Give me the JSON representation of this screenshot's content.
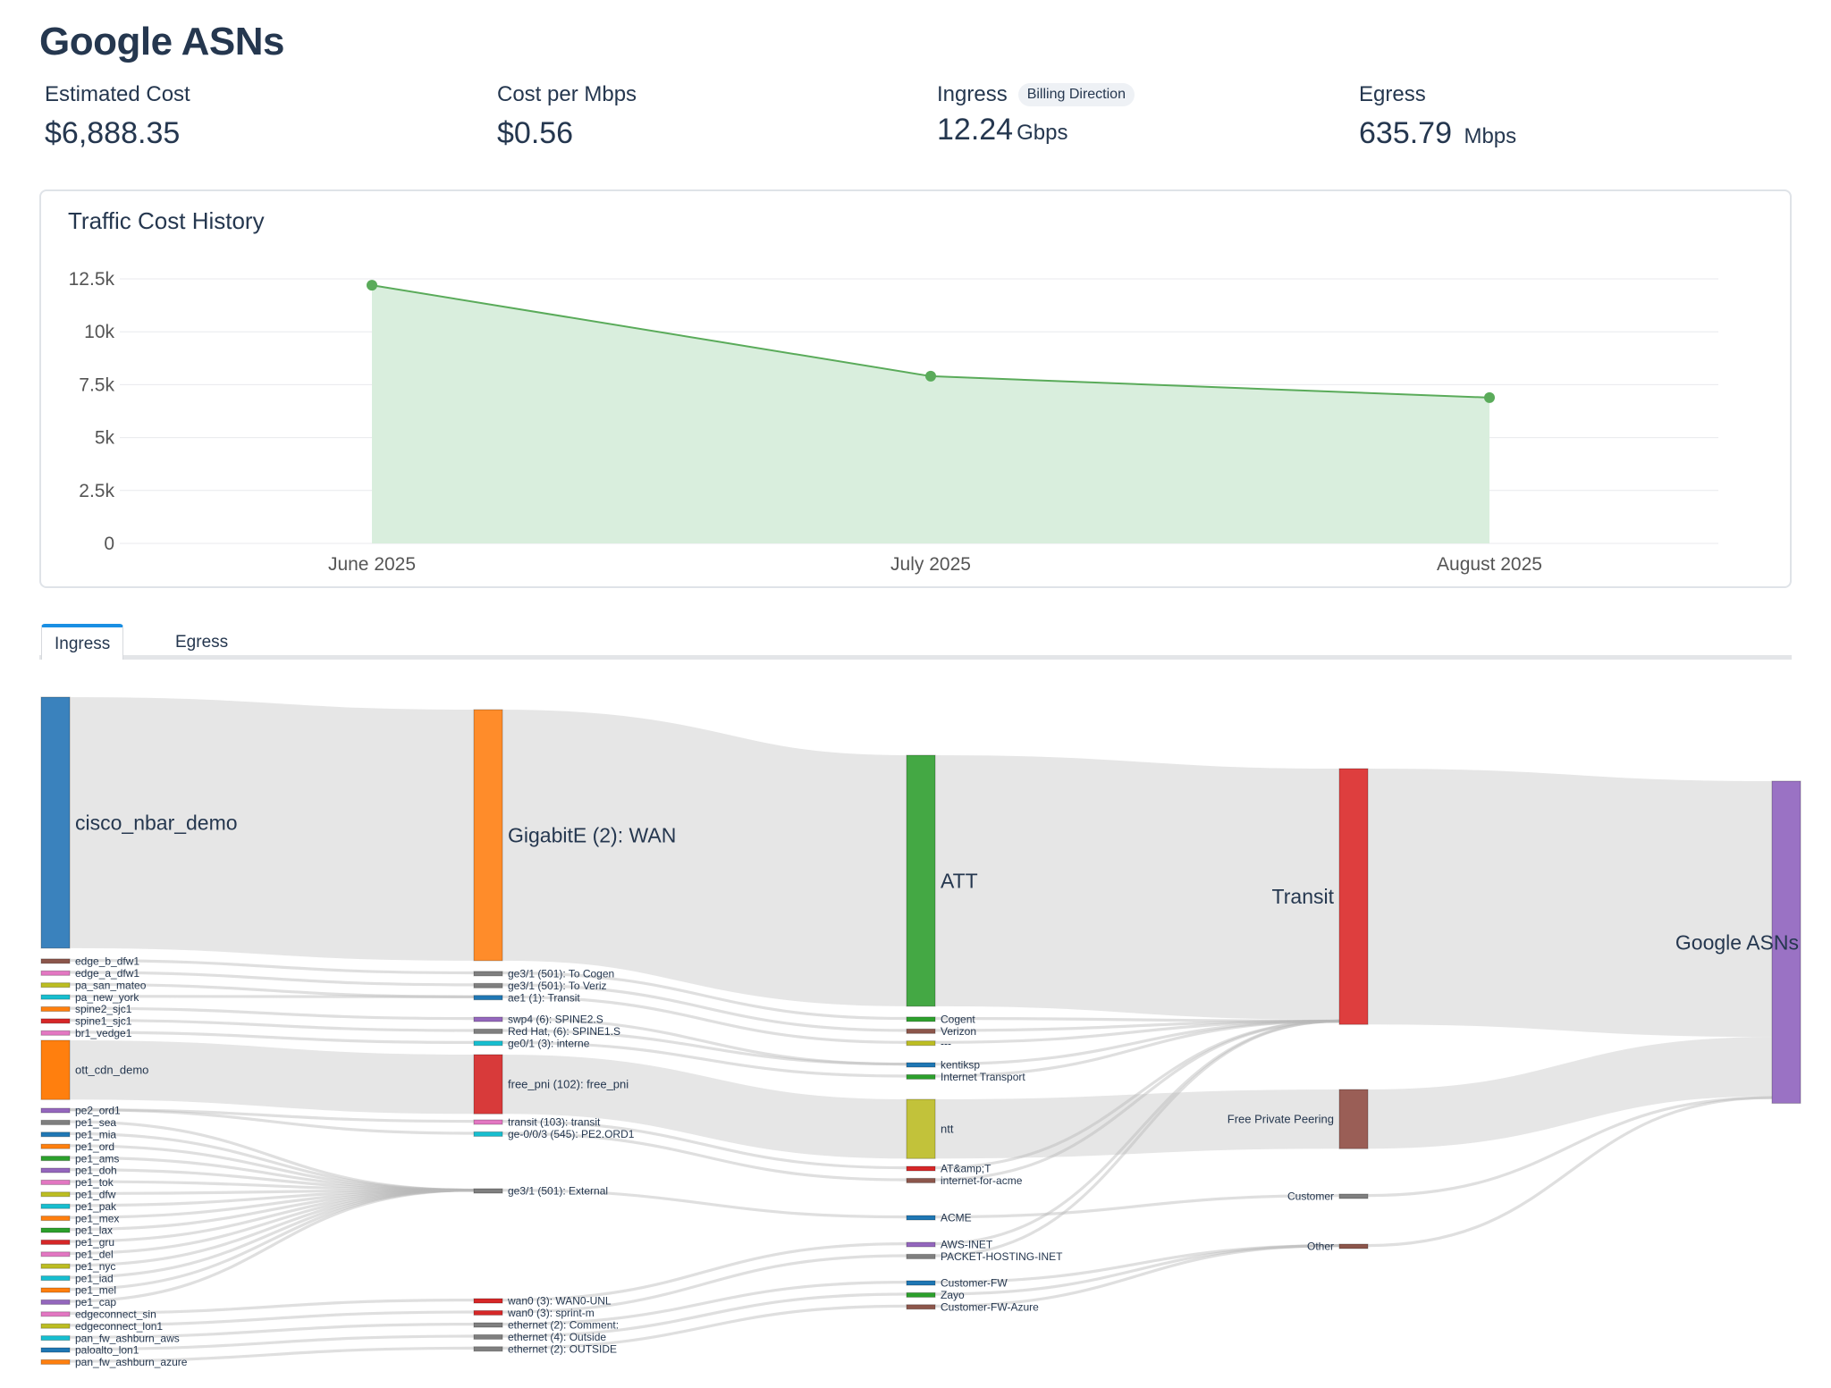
{
  "page": {
    "title": "Google ASNs"
  },
  "metrics": {
    "estimated_cost": {
      "label": "Estimated Cost",
      "value": "$6,888.35"
    },
    "cost_per_mbps": {
      "label": "Cost per Mbps",
      "value": "$0.56"
    },
    "ingress": {
      "label": "Ingress",
      "badge": "Billing Direction",
      "value": "12.24",
      "unit": "Gbps"
    },
    "egress": {
      "label": "Egress",
      "value": "635.79",
      "unit": "Mbps"
    }
  },
  "chart_data": {
    "type": "area",
    "title": "Traffic Cost History",
    "categories": [
      "June 2025",
      "July 2025",
      "August 2025"
    ],
    "values": [
      12200,
      7900,
      6888.35
    ],
    "ylim": [
      0,
      12500
    ],
    "yticks": [
      "0",
      "2.5k",
      "5k",
      "7.5k",
      "10k",
      "12.5k"
    ],
    "grid": true,
    "color": "#5aab5a",
    "fill": "#d9eedd"
  },
  "tabs": [
    {
      "label": "Ingress",
      "active": true
    },
    {
      "label": "Egress",
      "active": false
    }
  ],
  "sankey": {
    "columns": [
      [
        {
          "label": "cisco_nbar_demo",
          "color": "#3a82bd",
          "value": 106,
          "big": true
        },
        {
          "label": "edge_b_dfw1",
          "color": "#8c564b",
          "value": 1.5
        },
        {
          "label": "edge_a_dfw1",
          "color": "#e377c2",
          "value": 1.5
        },
        {
          "label": "pa_san_mateo",
          "color": "#bcbd22",
          "value": 1.5
        },
        {
          "label": "pa_new_york",
          "color": "#17becf",
          "value": 1.5
        },
        {
          "label": "spine2_sjc1",
          "color": "#ff7f0e",
          "value": 1.5
        },
        {
          "label": "spine1_sjc1",
          "color": "#d62728",
          "value": 1.5
        },
        {
          "label": "br1_vedge1",
          "color": "#e377c2",
          "value": 1.5
        },
        {
          "label": "ott_cdn_demo",
          "color": "#ff7f0e",
          "value": 25
        },
        {
          "label": "pe2_ord1",
          "color": "#9467bd",
          "value": 1.5
        },
        {
          "label": "pe1_sea",
          "color": "#7f7f7f",
          "value": 1.5
        },
        {
          "label": "pe1_mia",
          "color": "#1f77b4",
          "value": 1.5
        },
        {
          "label": "pe1_ord",
          "color": "#ff7f0e",
          "value": 1.5
        },
        {
          "label": "pe1_ams",
          "color": "#2ca02c",
          "value": 1.5
        },
        {
          "label": "pe1_doh",
          "color": "#9467bd",
          "value": 1.5
        },
        {
          "label": "pe1_tok",
          "color": "#e377c2",
          "value": 1.5
        },
        {
          "label": "pe1_dfw",
          "color": "#bcbd22",
          "value": 1.5
        },
        {
          "label": "pe1_pak",
          "color": "#17becf",
          "value": 1.5
        },
        {
          "label": "pe1_mex",
          "color": "#ff7f0e",
          "value": 1.5
        },
        {
          "label": "pe1_lax",
          "color": "#2ca02c",
          "value": 1.5
        },
        {
          "label": "pe1_gru",
          "color": "#d62728",
          "value": 1.5
        },
        {
          "label": "pe1_del",
          "color": "#e377c2",
          "value": 1.5
        },
        {
          "label": "pe1_nyc",
          "color": "#bcbd22",
          "value": 1.5
        },
        {
          "label": "pe1_iad",
          "color": "#17becf",
          "value": 1.5
        },
        {
          "label": "pe1_mel",
          "color": "#ff7f0e",
          "value": 1.5
        },
        {
          "label": "pe1_cap",
          "color": "#9467bd",
          "value": 1.5
        },
        {
          "label": "edgeconnect_sin",
          "color": "#e377c2",
          "value": 1.5
        },
        {
          "label": "edgeconnect_lon1",
          "color": "#bcbd22",
          "value": 1.5
        },
        {
          "label": "pan_fw_ashburn_aws",
          "color": "#17becf",
          "value": 1.5
        },
        {
          "label": "paloalto_lon1",
          "color": "#1f77b4",
          "value": 1.5
        },
        {
          "label": "pan_fw_ashburn_azure",
          "color": "#ff7f0e",
          "value": 1.5
        }
      ],
      [
        {
          "label": "GigabitE (2): WAN",
          "color": "#ff8c2a",
          "value": 106,
          "big": true
        },
        {
          "label": "ge3/1 (501): To Cogen",
          "color": "#7f7f7f",
          "value": 1.5
        },
        {
          "label": "ge3/1 (501): To Veriz",
          "color": "#7f7f7f",
          "value": 1.5
        },
        {
          "label": "ae1 (1): Transit",
          "color": "#1f77b4",
          "value": 1.5
        },
        {
          "label": "swp4 (6): SPINE2.S",
          "color": "#9467bd",
          "value": 1.5
        },
        {
          "label": "Red Hat, (6): SPINE1.S",
          "color": "#7f7f7f",
          "value": 1.5
        },
        {
          "label": "ge0/1 (3): interne",
          "color": "#17becf",
          "value": 1.5
        },
        {
          "label": "free_pni (102): free_pni",
          "color": "#d83a3a",
          "value": 25
        },
        {
          "label": "transit (103): transit",
          "color": "#e377c2",
          "value": 1.5
        },
        {
          "label": "ge-0/0/3 (545): PE2.ORD1",
          "color": "#17becf",
          "value": 1.5
        },
        {
          "label": "ge3/1 (501): External",
          "color": "#7f7f7f",
          "value": 1.5
        },
        {
          "label": "wan0 (3): WAN0-UNL",
          "color": "#d62728",
          "value": 1.5
        },
        {
          "label": "wan0 (3): sprint-m",
          "color": "#d62728",
          "value": 1.5
        },
        {
          "label": "ethernet (2): Comment:",
          "color": "#7f7f7f",
          "value": 1.5
        },
        {
          "label": "ethernet (4): Outside",
          "color": "#7f7f7f",
          "value": 1.5
        },
        {
          "label": "ethernet (2): OUTSIDE",
          "color": "#7f7f7f",
          "value": 1.5
        }
      ],
      [
        {
          "label": "ATT",
          "color": "#44a844",
          "value": 106,
          "big": true
        },
        {
          "label": "Cogent",
          "color": "#2ca02c",
          "value": 1.5
        },
        {
          "label": "Verizon",
          "color": "#8c564b",
          "value": 1.5
        },
        {
          "label": "---",
          "color": "#bcbd22",
          "value": 1.5
        },
        {
          "label": "kentiksp",
          "color": "#1f77b4",
          "value": 1.5
        },
        {
          "label": "Internet Transport",
          "color": "#2ca02c",
          "value": 1.5
        },
        {
          "label": "ntt",
          "color": "#c2c23a",
          "value": 25
        },
        {
          "label": "AT&amp;T",
          "color": "#d62728",
          "value": 1.5
        },
        {
          "label": "internet-for-acme",
          "color": "#8c564b",
          "value": 1.5
        },
        {
          "label": "ACME",
          "color": "#1f77b4",
          "value": 1.5
        },
        {
          "label": "AWS-INET",
          "color": "#9467bd",
          "value": 1.5
        },
        {
          "label": "PACKET-HOSTING-INET",
          "color": "#7f7f7f",
          "value": 1.5
        },
        {
          "label": "Customer-FW",
          "color": "#1f77b4",
          "value": 1.5
        },
        {
          "label": "Zayo",
          "color": "#2ca02c",
          "value": 1.5
        },
        {
          "label": "Customer-FW-Azure",
          "color": "#8c564b",
          "value": 1.5
        }
      ],
      [
        {
          "label": "Transit",
          "color": "#de3e3e",
          "value": 108,
          "big": true
        },
        {
          "label": "Free Private Peering",
          "color": "#9a5e56",
          "value": 25
        },
        {
          "label": "Customer",
          "color": "#7f7f7f",
          "value": 1.5
        },
        {
          "label": "Other",
          "color": "#8c564b",
          "value": 1.5
        }
      ],
      [
        {
          "label": "Google ASNs",
          "color": "#9a72c4",
          "value": 136,
          "big": true
        }
      ]
    ],
    "links": [
      [
        0,
        0,
        1,
        0,
        106
      ],
      [
        0,
        1,
        1,
        1,
        1.5
      ],
      [
        0,
        2,
        1,
        2,
        1.5
      ],
      [
        0,
        3,
        1,
        3,
        1.5
      ],
      [
        0,
        4,
        1,
        3,
        1.5
      ],
      [
        0,
        5,
        1,
        4,
        1.5
      ],
      [
        0,
        6,
        1,
        5,
        1.5
      ],
      [
        0,
        7,
        1,
        6,
        1.5
      ],
      [
        0,
        8,
        1,
        7,
        25
      ],
      [
        0,
        9,
        1,
        8,
        1.5
      ],
      [
        0,
        9,
        1,
        9,
        1.5
      ],
      [
        0,
        10,
        1,
        10,
        1.5
      ],
      [
        0,
        11,
        1,
        10,
        1.5
      ],
      [
        0,
        12,
        1,
        10,
        1.5
      ],
      [
        0,
        13,
        1,
        10,
        1.5
      ],
      [
        0,
        14,
        1,
        10,
        1.5
      ],
      [
        0,
        15,
        1,
        10,
        1.5
      ],
      [
        0,
        16,
        1,
        10,
        1.5
      ],
      [
        0,
        17,
        1,
        10,
        1.5
      ],
      [
        0,
        18,
        1,
        10,
        1.5
      ],
      [
        0,
        19,
        1,
        10,
        1.5
      ],
      [
        0,
        20,
        1,
        10,
        1.5
      ],
      [
        0,
        21,
        1,
        10,
        1.5
      ],
      [
        0,
        22,
        1,
        10,
        1.5
      ],
      [
        0,
        23,
        1,
        10,
        1.5
      ],
      [
        0,
        24,
        1,
        10,
        1.5
      ],
      [
        0,
        25,
        1,
        10,
        1.5
      ],
      [
        0,
        26,
        1,
        11,
        1.5
      ],
      [
        0,
        27,
        1,
        12,
        1.5
      ],
      [
        0,
        28,
        1,
        13,
        1.5
      ],
      [
        0,
        29,
        1,
        14,
        1.5
      ],
      [
        0,
        30,
        1,
        15,
        1.5
      ],
      [
        1,
        0,
        2,
        0,
        106
      ],
      [
        1,
        1,
        2,
        1,
        1.5
      ],
      [
        1,
        2,
        2,
        2,
        1.5
      ],
      [
        1,
        3,
        2,
        3,
        1.5
      ],
      [
        1,
        4,
        2,
        4,
        1.5
      ],
      [
        1,
        5,
        2,
        4,
        1.5
      ],
      [
        1,
        6,
        2,
        5,
        1.5
      ],
      [
        1,
        7,
        2,
        6,
        25
      ],
      [
        1,
        8,
        2,
        7,
        1.5
      ],
      [
        1,
        9,
        2,
        8,
        1.5
      ],
      [
        1,
        10,
        2,
        9,
        1.5
      ],
      [
        1,
        11,
        2,
        10,
        1.5
      ],
      [
        1,
        12,
        2,
        11,
        1.5
      ],
      [
        1,
        13,
        2,
        12,
        1.5
      ],
      [
        1,
        14,
        2,
        13,
        1.5
      ],
      [
        1,
        15,
        2,
        14,
        1.5
      ],
      [
        2,
        0,
        3,
        0,
        106
      ],
      [
        2,
        1,
        3,
        0,
        1.5
      ],
      [
        2,
        2,
        3,
        0,
        1.5
      ],
      [
        2,
        3,
        3,
        0,
        1.5
      ],
      [
        2,
        4,
        3,
        0,
        1.5
      ],
      [
        2,
        5,
        3,
        0,
        1.5
      ],
      [
        2,
        6,
        3,
        1,
        25
      ],
      [
        2,
        7,
        3,
        0,
        1.5
      ],
      [
        2,
        8,
        3,
        0,
        1.5
      ],
      [
        2,
        9,
        3,
        2,
        1.5
      ],
      [
        2,
        10,
        3,
        0,
        1.5
      ],
      [
        2,
        11,
        3,
        0,
        1.5
      ],
      [
        2,
        12,
        3,
        3,
        1.5
      ],
      [
        2,
        13,
        3,
        3,
        1.5
      ],
      [
        2,
        14,
        3,
        3,
        1.5
      ],
      [
        3,
        0,
        4,
        0,
        108
      ],
      [
        3,
        1,
        4,
        0,
        25
      ],
      [
        3,
        2,
        4,
        0,
        1.5
      ],
      [
        3,
        3,
        4,
        0,
        1.5
      ]
    ]
  }
}
